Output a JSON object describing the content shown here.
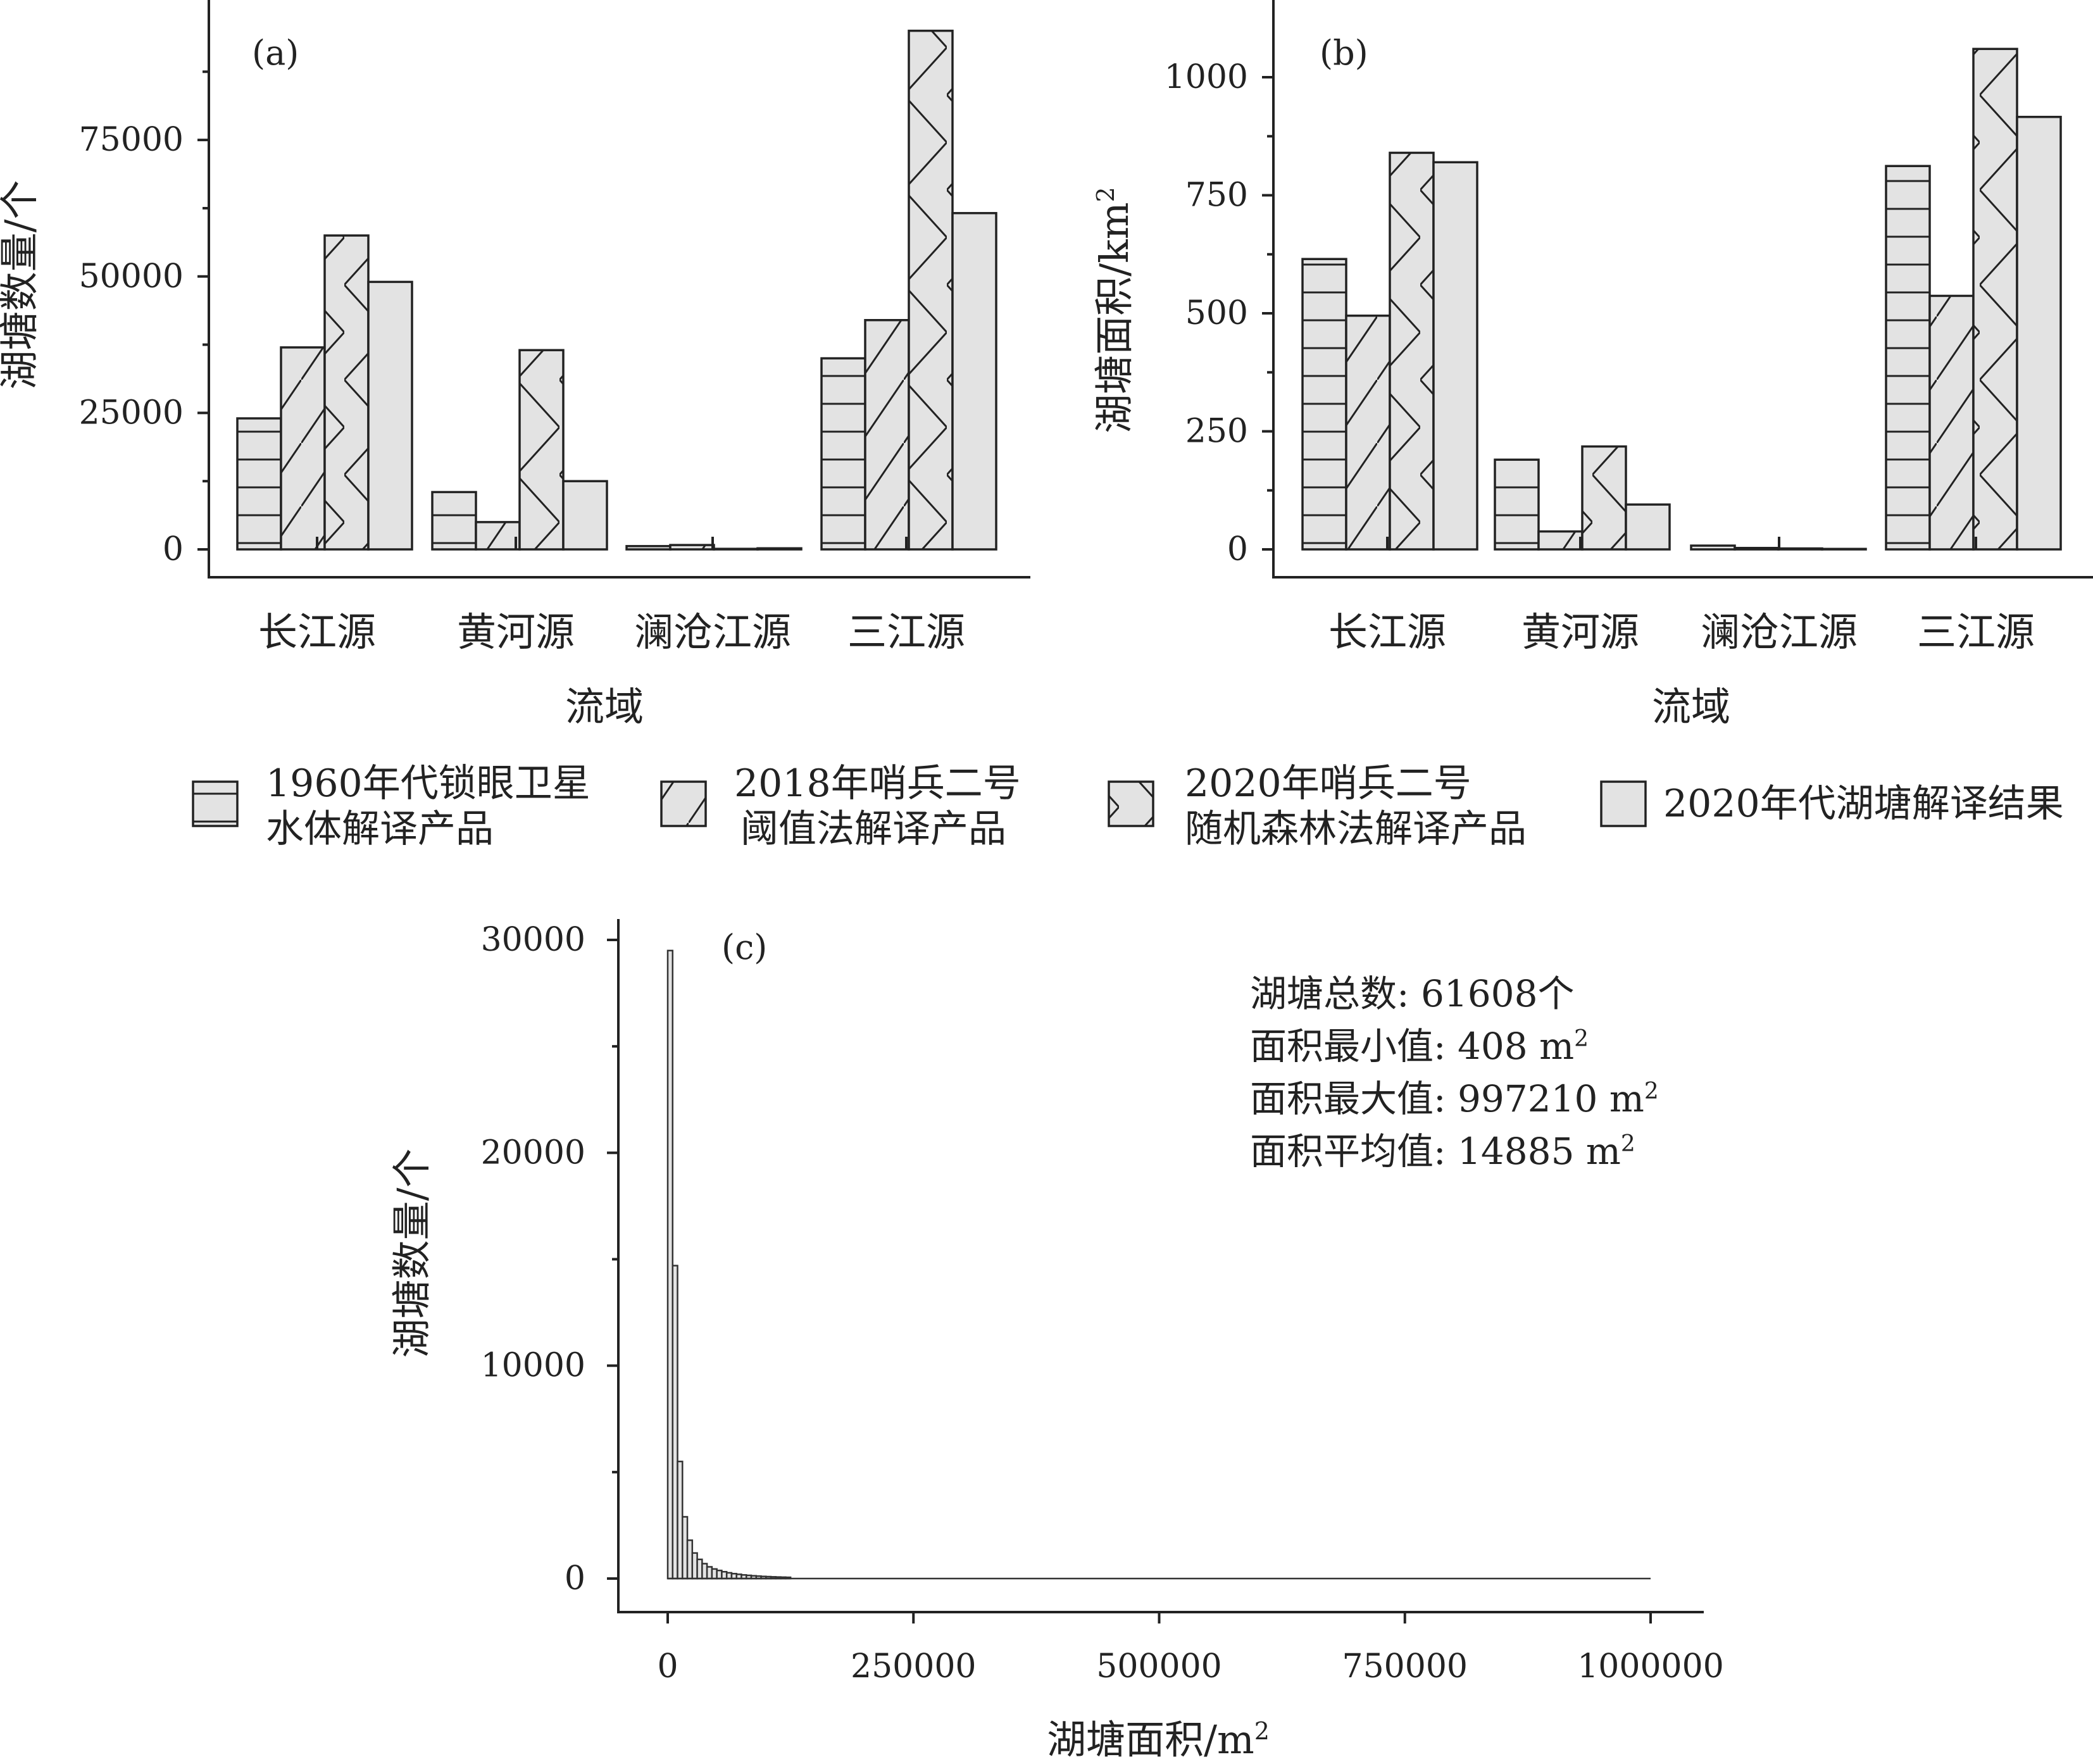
{
  "chart_data": [
    {
      "panel": "(a)",
      "type": "bar",
      "ylabel": "湖塘数量/个",
      "xlabel": "流域",
      "categories": [
        "长江源",
        "黄河源",
        "澜沧江源",
        "三江源"
      ],
      "ylim": [
        0,
        96000
      ],
      "yticks": [
        0,
        25000,
        50000,
        75000
      ],
      "series": [
        {
          "name": "1960年代锁眼卫星水体解译产品",
          "pattern": "horizontal",
          "values": [
            24000,
            10500,
            600,
            35000
          ]
        },
        {
          "name": "2018年哨兵二号阈值法解译产品",
          "pattern": "diagonal",
          "values": [
            37000,
            5000,
            800,
            42000
          ]
        },
        {
          "name": "2020年哨兵二号随机森林法解译产品",
          "pattern": "cross",
          "values": [
            57500,
            36500,
            100,
            95000
          ]
        },
        {
          "name": "2020年代湖塘解译结果",
          "pattern": "solid",
          "values": [
            49000,
            12500,
            200,
            61600
          ]
        }
      ]
    },
    {
      "panel": "(b)",
      "type": "bar",
      "ylabel": "湖塘面积/km²",
      "xlabel": "流域",
      "categories": [
        "长江源",
        "黄河源",
        "澜沧江源",
        "三江源"
      ],
      "ylim": [
        0,
        1110
      ],
      "yticks": [
        0,
        250,
        500,
        750,
        1000
      ],
      "series": [
        {
          "name": "1960年代锁眼卫星水体解译产品",
          "pattern": "horizontal",
          "values": [
            615,
            190,
            8,
            812
          ]
        },
        {
          "name": "2018年哨兵二号阈值法解译产品",
          "pattern": "diagonal",
          "values": [
            495,
            38,
            3,
            537
          ]
        },
        {
          "name": "2020年哨兵二号随机森林法解译产品",
          "pattern": "cross",
          "values": [
            840,
            218,
            2,
            1060
          ]
        },
        {
          "name": "2020年代湖塘解译结果",
          "pattern": "solid",
          "values": [
            820,
            95,
            1,
            916
          ]
        }
      ]
    },
    {
      "panel": "(c)",
      "type": "bar",
      "subtype": "histogram",
      "xlabel": "湖塘面积/m²",
      "ylabel": "湖塘数量/个",
      "xlim": [
        0,
        1000000
      ],
      "ylim": [
        0,
        30000
      ],
      "xticks": [
        0,
        250000,
        500000,
        750000,
        1000000
      ],
      "yticks": [
        0,
        10000,
        20000,
        30000
      ],
      "bin_width": 5000,
      "bin_start": 0,
      "counts": [
        29500,
        14700,
        5500,
        2900,
        1800,
        1200,
        900,
        700,
        550,
        450,
        380,
        320,
        270,
        230,
        200,
        170,
        150,
        130,
        115,
        100,
        90,
        80,
        72,
        65,
        58
      ]
    }
  ],
  "panels": {
    "a": {
      "label": "(a)",
      "ylabel": "湖塘数量/个",
      "xlabel": "流域",
      "ticks": [
        "0",
        "25000",
        "50000",
        "75000"
      ]
    },
    "b": {
      "label": "(b)",
      "ylabel": "湖塘面积/km²",
      "xlabel": "流域",
      "ticks": [
        "0",
        "250",
        "500",
        "750",
        "1000"
      ]
    },
    "c": {
      "label": "(c)",
      "ylabel": "湖塘数量/个",
      "xlabel": "湖塘面积/m²",
      "yticks": [
        "0",
        "10000",
        "20000",
        "30000"
      ],
      "xticks": [
        "0",
        "250000",
        "500000",
        "750000",
        "1000000"
      ]
    }
  },
  "categories": [
    "长江源",
    "黄河源",
    "澜沧江源",
    "三江源"
  ],
  "legend": [
    {
      "line1": "1960年代锁眼卫星",
      "line2": "水体解译产品"
    },
    {
      "line1": "2018年哨兵二号",
      "line2": "阈值法解译产品"
    },
    {
      "line1": "2020年哨兵二号",
      "line2": "随机森林法解译产品"
    },
    {
      "line1": "2020年代湖塘解译结果",
      "line2": ""
    }
  ],
  "stats": {
    "total": "湖塘总数: 61608个",
    "min": "面积最小值: 408 m²",
    "max": "面积最大值: 997210 m²",
    "mean": "面积平均值: 14885 m²"
  },
  "colors": {
    "bar_fill": "#e3e3e3",
    "stroke": "#222222"
  }
}
